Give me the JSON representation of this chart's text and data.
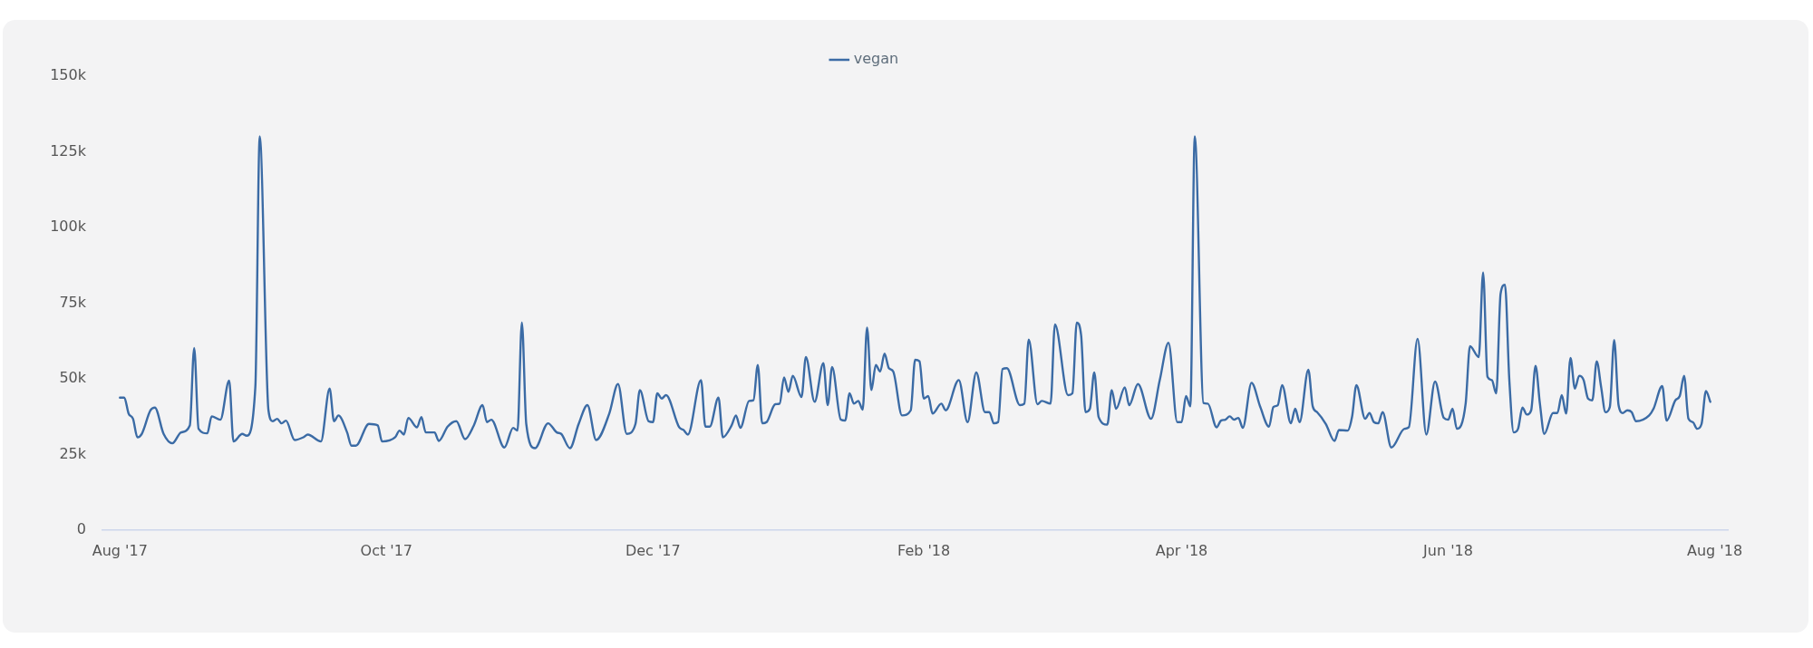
{
  "chart_data": {
    "type": "line",
    "legend": "top",
    "marker": "none",
    "xlim": [
      "2017-07-28",
      "2018-08-04"
    ],
    "xticks": [
      {
        "value": "2017-08-01",
        "label": "Aug '17"
      },
      {
        "value": "2017-10-01",
        "label": "Oct '17"
      },
      {
        "value": "2017-12-01",
        "label": "Dec '17"
      },
      {
        "value": "2018-02-01",
        "label": "Feb '18"
      },
      {
        "value": "2018-04-01",
        "label": "Apr '18"
      },
      {
        "value": "2018-06-01",
        "label": "Jun '18"
      },
      {
        "value": "2018-08-01",
        "label": "Aug '18"
      }
    ],
    "ylim": [
      0,
      150000
    ],
    "yticks": [
      {
        "value": 0,
        "label": "0"
      },
      {
        "value": 25000,
        "label": "25k"
      },
      {
        "value": 50000,
        "label": "50k"
      },
      {
        "value": 75000,
        "label": "75k"
      },
      {
        "value": 100000,
        "label": "100k"
      },
      {
        "value": 125000,
        "label": "125k"
      },
      {
        "value": 150000,
        "label": "150k"
      }
    ],
    "series": [
      {
        "name": "vegan",
        "color": "#3b6ba5",
        "x": [
          "2017-08-01",
          "2017-08-02",
          "2017-08-03",
          "2017-08-04",
          "2017-08-05",
          "2017-08-06",
          "2017-08-08",
          "2017-08-09",
          "2017-08-11",
          "2017-08-13",
          "2017-08-15",
          "2017-08-17",
          "2017-08-18",
          "2017-08-19",
          "2017-08-21",
          "2017-08-22",
          "2017-08-24",
          "2017-08-26",
          "2017-08-27",
          "2017-08-29",
          "2017-08-30",
          "2017-09-01",
          "2017-09-02",
          "2017-09-04",
          "2017-09-05",
          "2017-09-06",
          "2017-09-07",
          "2017-09-08",
          "2017-09-10",
          "2017-09-12",
          "2017-09-13",
          "2017-09-16",
          "2017-09-18",
          "2017-09-19",
          "2017-09-20",
          "2017-09-22",
          "2017-09-23",
          "2017-09-24",
          "2017-09-27",
          "2017-09-29",
          "2017-09-30",
          "2017-10-03",
          "2017-10-04",
          "2017-10-05",
          "2017-10-06",
          "2017-10-08",
          "2017-10-09",
          "2017-10-10",
          "2017-10-12",
          "2017-10-13",
          "2017-10-15",
          "2017-10-17",
          "2017-10-19",
          "2017-10-21",
          "2017-10-23",
          "2017-10-24",
          "2017-10-25",
          "2017-10-28",
          "2017-10-30",
          "2017-10-31",
          "2017-11-01",
          "2017-11-02",
          "2017-11-04",
          "2017-11-07",
          "2017-11-09",
          "2017-11-10",
          "2017-11-12",
          "2017-11-14",
          "2017-11-16",
          "2017-11-18",
          "2017-11-21",
          "2017-11-23",
          "2017-11-25",
          "2017-11-27",
          "2017-11-28",
          "2017-11-30",
          "2017-12-01",
          "2017-12-02",
          "2017-12-03",
          "2017-12-04",
          "2017-12-07",
          "2017-12-08",
          "2017-12-09",
          "2017-12-12",
          "2017-12-13",
          "2017-12-14",
          "2017-12-16",
          "2017-12-17",
          "2017-12-19",
          "2017-12-20",
          "2017-12-21",
          "2017-12-23",
          "2017-12-24",
          "2017-12-25",
          "2017-12-26",
          "2017-12-27",
          "2017-12-29",
          "2017-12-30",
          "2017-12-31",
          "2018-01-01",
          "2018-01-02",
          "2018-01-04",
          "2018-01-05",
          "2018-01-07",
          "2018-01-09",
          "2018-01-10",
          "2018-01-11",
          "2018-01-13",
          "2018-01-14",
          "2018-01-15",
          "2018-01-16",
          "2018-01-17",
          "2018-01-18",
          "2018-01-19",
          "2018-01-20",
          "2018-01-21",
          "2018-01-22",
          "2018-01-23",
          "2018-01-24",
          "2018-01-25",
          "2018-01-27",
          "2018-01-29",
          "2018-01-30",
          "2018-01-31",
          "2018-02-01",
          "2018-02-02",
          "2018-02-03",
          "2018-02-05",
          "2018-02-06",
          "2018-02-09",
          "2018-02-11",
          "2018-02-13",
          "2018-02-15",
          "2018-02-16",
          "2018-02-17",
          "2018-02-18",
          "2018-02-19",
          "2018-02-20",
          "2018-02-23",
          "2018-02-24",
          "2018-02-25",
          "2018-02-27",
          "2018-02-28",
          "2018-03-02",
          "2018-03-03",
          "2018-03-06",
          "2018-03-07",
          "2018-03-08",
          "2018-03-09",
          "2018-03-10",
          "2018-03-11",
          "2018-03-12",
          "2018-03-13",
          "2018-03-15",
          "2018-03-16",
          "2018-03-17",
          "2018-03-19",
          "2018-03-20",
          "2018-03-22",
          "2018-03-25",
          "2018-03-27",
          "2018-03-29",
          "2018-03-31",
          "2018-04-01",
          "2018-04-02",
          "2018-04-03",
          "2018-04-04",
          "2018-04-06",
          "2018-04-07",
          "2018-04-09",
          "2018-04-10",
          "2018-04-11",
          "2018-04-12",
          "2018-04-13",
          "2018-04-14",
          "2018-04-15",
          "2018-04-17",
          "2018-04-19",
          "2018-04-21",
          "2018-04-22",
          "2018-04-23",
          "2018-04-24",
          "2018-04-26",
          "2018-04-27",
          "2018-04-28",
          "2018-04-30",
          "2018-05-01",
          "2018-05-02",
          "2018-05-04",
          "2018-05-06",
          "2018-05-07",
          "2018-05-09",
          "2018-05-10",
          "2018-05-11",
          "2018-05-13",
          "2018-05-14",
          "2018-05-15",
          "2018-05-16",
          "2018-05-17",
          "2018-05-19",
          "2018-05-22",
          "2018-05-23",
          "2018-05-25",
          "2018-05-27",
          "2018-05-29",
          "2018-05-31",
          "2018-06-01",
          "2018-06-02",
          "2018-06-03",
          "2018-06-05",
          "2018-06-06",
          "2018-06-08",
          "2018-06-09",
          "2018-06-10",
          "2018-06-11",
          "2018-06-12",
          "2018-06-13",
          "2018-06-14",
          "2018-06-15",
          "2018-06-16",
          "2018-06-17",
          "2018-06-18",
          "2018-06-19",
          "2018-06-20",
          "2018-06-21",
          "2018-06-22",
          "2018-06-23",
          "2018-06-25",
          "2018-06-26",
          "2018-06-27",
          "2018-06-28",
          "2018-06-29",
          "2018-06-30",
          "2018-07-01",
          "2018-07-02",
          "2018-07-03",
          "2018-07-04",
          "2018-07-05",
          "2018-07-06",
          "2018-07-07",
          "2018-07-08",
          "2018-07-09",
          "2018-07-10",
          "2018-07-11",
          "2018-07-12",
          "2018-07-13",
          "2018-07-14",
          "2018-07-17",
          "2018-07-18",
          "2018-07-20",
          "2018-07-21",
          "2018-07-23",
          "2018-07-24",
          "2018-07-25",
          "2018-07-26",
          "2018-07-27",
          "2018-07-28",
          "2018-07-29",
          "2018-07-30",
          "2018-07-31"
        ],
        "values": [
          43800,
          43800,
          38500,
          36800,
          30700,
          31800,
          39600,
          40500,
          31800,
          28700,
          32300,
          34600,
          60200,
          33500,
          32000,
          37600,
          36500,
          49400,
          29300,
          31800,
          31200,
          47400,
          130100,
          39600,
          36000,
          36800,
          35300,
          36200,
          29800,
          30700,
          31600,
          29300,
          46800,
          36000,
          37900,
          32300,
          27900,
          27900,
          35100,
          34600,
          29300,
          30700,
          32900,
          31600,
          37100,
          34000,
          37400,
          32300,
          32300,
          29500,
          34200,
          36000,
          30100,
          34600,
          41300,
          35700,
          36500,
          27300,
          33800,
          32900,
          68600,
          35100,
          27100,
          35300,
          32300,
          31800,
          27100,
          35100,
          41300,
          29800,
          38500,
          48300,
          31800,
          35100,
          46300,
          36000,
          35700,
          45200,
          43500,
          44600,
          34000,
          33100,
          31600,
          49600,
          34200,
          34200,
          43800,
          30700,
          34600,
          37900,
          33800,
          42700,
          42900,
          54600,
          35300,
          35700,
          41600,
          41800,
          50500,
          45700,
          51000,
          44000,
          57200,
          42400,
          55200,
          41300,
          53900,
          36500,
          36200,
          45200,
          41800,
          42700,
          39800,
          66900,
          46300,
          54600,
          52400,
          58300,
          53500,
          52400,
          37900,
          39600,
          56300,
          55800,
          43500,
          44300,
          38500,
          41800,
          39600,
          49600,
          35700,
          52100,
          39000,
          39000,
          35300,
          35700,
          53200,
          53500,
          41300,
          41800,
          63000,
          41600,
          42700,
          41800,
          68000,
          44600,
          45200,
          68600,
          64300,
          39000,
          40100,
          52100,
          37400,
          34900,
          46300,
          40100,
          47200,
          41300,
          48300,
          36800,
          49600,
          61900,
          35700,
          35700,
          44300,
          40900,
          130100,
          42000,
          41800,
          34000,
          36200,
          36500,
          37600,
          36500,
          37100,
          33800,
          48700,
          40700,
          34200,
          40700,
          41300,
          47900,
          35300,
          40100,
          35700,
          53000,
          40900,
          39000,
          35100,
          29500,
          33100,
          32900,
          37400,
          47900,
          36800,
          38700,
          35700,
          35300,
          39000,
          27300,
          33500,
          34000,
          63200,
          31600,
          49100,
          37100,
          36500,
          40100,
          33500,
          41800,
          60800,
          57200,
          85100,
          50700,
          49600,
          45200,
          78100,
          81100,
          49600,
          32300,
          33500,
          40500,
          38200,
          39600,
          54300,
          41800,
          31800,
          38700,
          38700,
          44600,
          38500,
          56900,
          46800,
          51000,
          49600,
          43500,
          42900,
          55800,
          47400,
          39000,
          40700,
          62800,
          41300,
          38700,
          39600,
          39000,
          36000,
          37900,
          40100,
          47600,
          36200,
          42900,
          44300,
          51000,
          36800,
          35700,
          33500,
          35100,
          46000,
          42400
        ]
      }
    ]
  }
}
